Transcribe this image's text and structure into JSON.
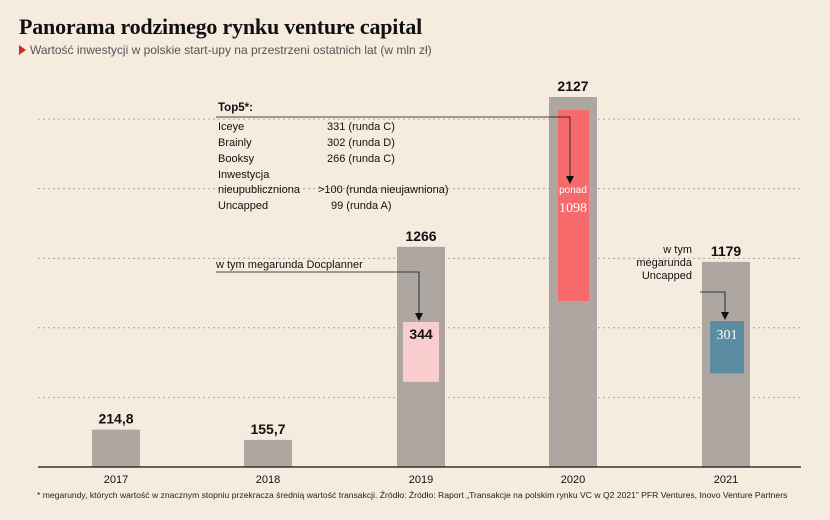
{
  "header": {
    "title": "Panorama rodzimego rynku venture capital",
    "subtitle": "Wartość inwestycji w polskie start-upy na przestrzeni ostatnich lat (w mln zł)"
  },
  "chart_data": {
    "type": "bar",
    "categories": [
      "2017",
      "2018",
      "2019",
      "2020",
      "2021"
    ],
    "values": [
      214.8,
      155.7,
      1266,
      2127,
      1179
    ],
    "value_labels": [
      "214,8",
      "155,7",
      "1266",
      "2127",
      "1179"
    ],
    "ylim": [
      0,
      2200
    ],
    "grid": true,
    "colors": {
      "bar": "#aea7a1",
      "highlight_2019": "#f9cdce",
      "highlight_2020": "#f76a6b",
      "highlight_2021": "#5b8ca1",
      "axis": "#111111",
      "grid": "#9e968f"
    },
    "highlights": [
      {
        "category": "2019",
        "value": 344,
        "label": "344",
        "annotation": "w tym megarunda Docplanner"
      },
      {
        "category": "2020",
        "value": 1098,
        "label_prefix": "ponad",
        "label": "1098"
      },
      {
        "category": "2021",
        "value": 301,
        "label": "301",
        "annotation_lines": [
          "w tym",
          "megarunda",
          "Uncapped"
        ]
      }
    ],
    "top5": {
      "title": "Top5*:",
      "rows": [
        {
          "name": "Iceye",
          "value": "331 (runda C)"
        },
        {
          "name": "Brainly",
          "value": "302 (runda D)"
        },
        {
          "name": "Booksy",
          "value": "266 (runda C)"
        },
        {
          "name_lines": [
            "Inwestycja",
            "nieupubliczniona"
          ],
          "value": ">100 (runda nieujawniona)"
        },
        {
          "name": "Uncapped",
          "value": "99 (runda A)"
        }
      ]
    }
  },
  "footnote": "* megarundy, których wartość w znacznym stopniu przekracza średnią wartość transakcji. Źródło: Źródło: Raport „Transakcje na polskim rynku VC w Q2 2021” PFR Ventures, Inovo Venture Partners"
}
